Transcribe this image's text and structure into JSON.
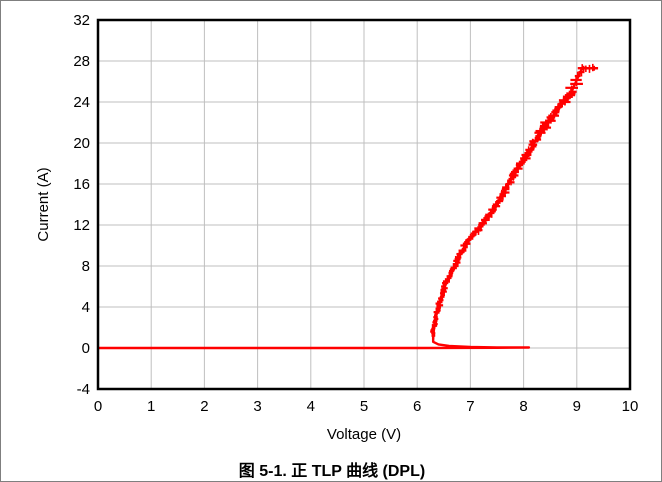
{
  "caption": "图 5-1. 正 TLP 曲线 (DPL)",
  "chart_data": {
    "type": "line",
    "title": "",
    "xlabel": "Voltage (V)",
    "ylabel": "Current (A)",
    "xlim": [
      0,
      10
    ],
    "ylim": [
      -4,
      32
    ],
    "x_ticks": [
      "0",
      "1",
      "2",
      "3",
      "4",
      "5",
      "6",
      "7",
      "8",
      "9",
      "10"
    ],
    "y_ticks": [
      "-4",
      "0",
      "4",
      "8",
      "12",
      "16",
      "20",
      "24",
      "28",
      "32"
    ],
    "grid": true,
    "legend": "none",
    "series": [
      {
        "color": "#ff0000",
        "x": [
          0,
          2,
          4,
          6,
          7.5,
          8.1,
          8.1,
          7.5,
          7.0,
          6.6,
          6.4,
          6.3,
          6.3,
          6.32,
          6.35,
          6.4,
          6.45,
          6.52,
          6.6,
          6.7,
          6.8,
          6.9,
          7.05,
          7.2,
          7.35,
          7.5,
          7.62,
          7.72,
          7.82,
          7.95,
          8.08,
          8.2,
          8.32,
          8.45,
          8.6,
          8.75,
          8.9,
          9.1,
          9.4
        ],
        "y": [
          0,
          0,
          0,
          0,
          0.02,
          0.05,
          0.05,
          0.05,
          0.1,
          0.2,
          0.35,
          0.6,
          1.2,
          2.0,
          3.0,
          4.0,
          5.0,
          6.0,
          7.0,
          8.0,
          9.0,
          10.0,
          11.0,
          12.0,
          13.0,
          14.0,
          15.0,
          16.0,
          17.0,
          18.0,
          19.0,
          20.0,
          21.0,
          22.0,
          23.0,
          24.0,
          25.0,
          27.3,
          27.3
        ]
      }
    ]
  }
}
